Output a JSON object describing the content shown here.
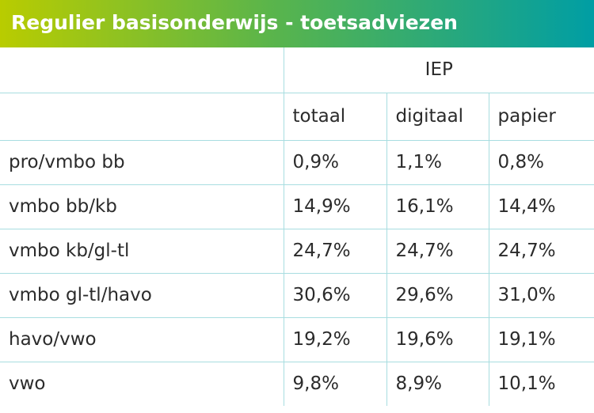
{
  "title": "Regulier basisonderwijs - toetsadviezen",
  "table": {
    "group_header": "IEP",
    "columns": [
      "totaal",
      "digitaal",
      "papier"
    ],
    "rows": [
      [
        "pro/vmbo bb",
        "0,9%",
        "1,1%",
        "0,8%"
      ],
      [
        "vmbo bb/kb",
        "14,9%",
        "16,1%",
        "14,4%"
      ],
      [
        "vmbo kb/gl-tl",
        "24,7%",
        "24,7%",
        "24,7%"
      ],
      [
        "vmbo gl-tl/havo",
        "30,6%",
        "29,6%",
        "31,0%"
      ],
      [
        "havo/vwo",
        "19,2%",
        "19,6%",
        "19,1%"
      ],
      [
        "vwo",
        "9,8%",
        "8,9%",
        "10,1%"
      ]
    ]
  }
}
